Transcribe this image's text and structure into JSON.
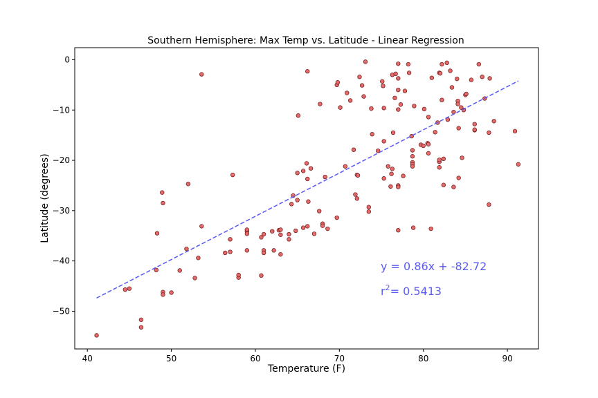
{
  "chart_data": {
    "type": "scatter",
    "title": "Southern Hemisphere: Max Temp vs. Latitude - Linear Regression",
    "xlabel": "Temperature (F)",
    "ylabel": "Latitude (degrees)",
    "xlim": [
      38.5,
      93.7
    ],
    "ylim": [
      -57.5,
      2.4
    ],
    "xticks": [
      40,
      50,
      60,
      70,
      80,
      90
    ],
    "yticks": [
      0,
      -10,
      -20,
      -30,
      -40,
      -50
    ],
    "grid": false,
    "colors": {
      "point_fill": "#e36b6b",
      "point_edge": "#7a1f1f",
      "regression": "#5b5bf0",
      "annotation": "#5b5bf0"
    },
    "regression": {
      "slope": 0.86,
      "intercept": -82.72,
      "x_range": [
        41.1,
        91.3
      ]
    },
    "annotation_equation": "y = 0.86x + -82.72",
    "annotation_r2_label": "r",
    "annotation_r2_sup": "2",
    "annotation_r2_value": "=  0.5413",
    "points": [
      [
        41.1,
        -54.8
      ],
      [
        44.5,
        -45.7
      ],
      [
        45.0,
        -45.5
      ],
      [
        46.4,
        -51.7
      ],
      [
        46.4,
        -53.2
      ],
      [
        48.2,
        -41.8
      ],
      [
        48.3,
        -34.5
      ],
      [
        48.9,
        -26.4
      ],
      [
        49.0,
        -28.5
      ],
      [
        49.0,
        -46.2
      ],
      [
        49.0,
        -46.7
      ],
      [
        50.0,
        -46.3
      ],
      [
        51.0,
        -41.9
      ],
      [
        51.8,
        -37.6
      ],
      [
        52.0,
        -24.7
      ],
      [
        52.8,
        -43.4
      ],
      [
        53.2,
        -39.4
      ],
      [
        53.6,
        -33.1
      ],
      [
        53.6,
        -2.9
      ],
      [
        56.4,
        -38.4
      ],
      [
        57.0,
        -38.2
      ],
      [
        57.0,
        -35.7
      ],
      [
        57.3,
        -22.9
      ],
      [
        58.0,
        -43.3
      ],
      [
        58.0,
        -42.8
      ],
      [
        59.0,
        -34.1
      ],
      [
        59.0,
        -34.6
      ],
      [
        59.0,
        -33.8
      ],
      [
        59.0,
        -37.9
      ],
      [
        60.7,
        -42.9
      ],
      [
        60.7,
        -35.3
      ],
      [
        61.0,
        -34.7
      ],
      [
        61.0,
        -37.9
      ],
      [
        61.0,
        -38.4
      ],
      [
        62.0,
        -34.1
      ],
      [
        62.2,
        -37.9
      ],
      [
        62.8,
        -33.9
      ],
      [
        63.0,
        -33.8
      ],
      [
        63.0,
        -38.7
      ],
      [
        63.0,
        -34.8
      ],
      [
        64.0,
        -34.7
      ],
      [
        64.0,
        -35.7
      ],
      [
        64.3,
        -28.7
      ],
      [
        64.5,
        -27.0
      ],
      [
        64.8,
        -34.0
      ],
      [
        65.0,
        -27.9
      ],
      [
        65.0,
        -22.5
      ],
      [
        65.1,
        -11.1
      ],
      [
        65.7,
        -22.1
      ],
      [
        65.7,
        -33.4
      ],
      [
        66.1,
        -20.6
      ],
      [
        66.2,
        -33.1
      ],
      [
        66.2,
        -23.7
      ],
      [
        66.3,
        -28.2
      ],
      [
        66.2,
        -2.3
      ],
      [
        66.6,
        -21.6
      ],
      [
        67.0,
        -34.6
      ],
      [
        67.6,
        -30.1
      ],
      [
        67.7,
        -8.8
      ],
      [
        68.0,
        -32.6
      ],
      [
        68.0,
        -33.0
      ],
      [
        68.3,
        -23.3
      ],
      [
        68.6,
        -33.6
      ],
      [
        69.7,
        -31.4
      ],
      [
        69.7,
        -5.0
      ],
      [
        69.8,
        -4.5
      ],
      [
        70.1,
        -9.5
      ],
      [
        70.7,
        -21.2
      ],
      [
        70.9,
        -6.6
      ],
      [
        71.3,
        -8.1
      ],
      [
        71.7,
        -17.9
      ],
      [
        71.9,
        -26.8
      ],
      [
        72.1,
        -22.9
      ],
      [
        72.1,
        -27.6
      ],
      [
        72.2,
        -23.0
      ],
      [
        72.4,
        -3.4
      ],
      [
        72.7,
        -5.1
      ],
      [
        72.9,
        -7.3
      ],
      [
        73.1,
        -0.4
      ],
      [
        73.5,
        -29.3
      ],
      [
        73.5,
        -30.2
      ],
      [
        73.8,
        -9.7
      ],
      [
        73.9,
        -14.8
      ],
      [
        74.6,
        -18.1
      ],
      [
        75.1,
        -4.3
      ],
      [
        75.2,
        -5.2
      ],
      [
        75.3,
        -9.6
      ],
      [
        75.3,
        -16.2
      ],
      [
        75.3,
        -23.6
      ],
      [
        75.8,
        -21.2
      ],
      [
        76.1,
        -25.2
      ],
      [
        76.2,
        -22.7
      ],
      [
        76.3,
        -21.7
      ],
      [
        76.3,
        -3.0
      ],
      [
        76.4,
        -14.5
      ],
      [
        76.6,
        -7.6
      ],
      [
        76.7,
        -2.8
      ],
      [
        77.0,
        -25.0
      ],
      [
        77.0,
        -25.3
      ],
      [
        77.0,
        -33.9
      ],
      [
        77.0,
        -0.8
      ],
      [
        77.0,
        -3.7
      ],
      [
        77.0,
        -9.9
      ],
      [
        77.0,
        -6.0
      ],
      [
        77.3,
        -8.9
      ],
      [
        77.6,
        -23.1
      ],
      [
        77.8,
        -6.2
      ],
      [
        78.2,
        -0.9
      ],
      [
        78.3,
        -2.6
      ],
      [
        78.6,
        -15.2
      ],
      [
        78.7,
        -18.0
      ],
      [
        78.7,
        -19.2
      ],
      [
        78.7,
        -20.4
      ],
      [
        78.7,
        -20.8
      ],
      [
        78.7,
        -21.2
      ],
      [
        78.8,
        -33.4
      ],
      [
        78.9,
        -9.2
      ],
      [
        79.7,
        -16.9
      ],
      [
        80.0,
        -17.1
      ],
      [
        80.1,
        -9.8
      ],
      [
        80.5,
        -16.6
      ],
      [
        80.6,
        -16.8
      ],
      [
        80.6,
        -11.4
      ],
      [
        80.6,
        -18.6
      ],
      [
        80.9,
        -33.6
      ],
      [
        81.0,
        -3.6
      ],
      [
        81.4,
        -14.4
      ],
      [
        81.7,
        -12.5
      ],
      [
        81.9,
        -20.3
      ],
      [
        81.9,
        -19.9
      ],
      [
        81.9,
        -21.4
      ],
      [
        81.9,
        -2.6
      ],
      [
        82.0,
        -2.7
      ],
      [
        82.2,
        -0.9
      ],
      [
        82.2,
        -8.0
      ],
      [
        82.4,
        -19.7
      ],
      [
        82.4,
        -24.9
      ],
      [
        82.8,
        -0.6
      ],
      [
        82.9,
        -11.9
      ],
      [
        83.2,
        -2.2
      ],
      [
        83.4,
        -5.5
      ],
      [
        83.6,
        -25.3
      ],
      [
        83.6,
        -10.4
      ],
      [
        84.0,
        -3.8
      ],
      [
        84.1,
        -8.2
      ],
      [
        84.1,
        -8.8
      ],
      [
        84.2,
        -23.5
      ],
      [
        84.2,
        -13.6
      ],
      [
        84.5,
        -9.5
      ],
      [
        84.6,
        -19.5
      ],
      [
        84.8,
        -10.0
      ],
      [
        85.0,
        -7.0
      ],
      [
        85.1,
        -6.8
      ],
      [
        85.7,
        -4.0
      ],
      [
        86.1,
        -12.8
      ],
      [
        86.1,
        -14.0
      ],
      [
        86.1,
        -13.9
      ],
      [
        86.6,
        -0.9
      ],
      [
        87.0,
        -3.4
      ],
      [
        87.3,
        -7.7
      ],
      [
        87.8,
        -28.8
      ],
      [
        87.8,
        -14.5
      ],
      [
        87.9,
        -3.7
      ],
      [
        88.4,
        -12.2
      ],
      [
        90.9,
        -14.2
      ],
      [
        91.3,
        -20.8
      ]
    ]
  }
}
